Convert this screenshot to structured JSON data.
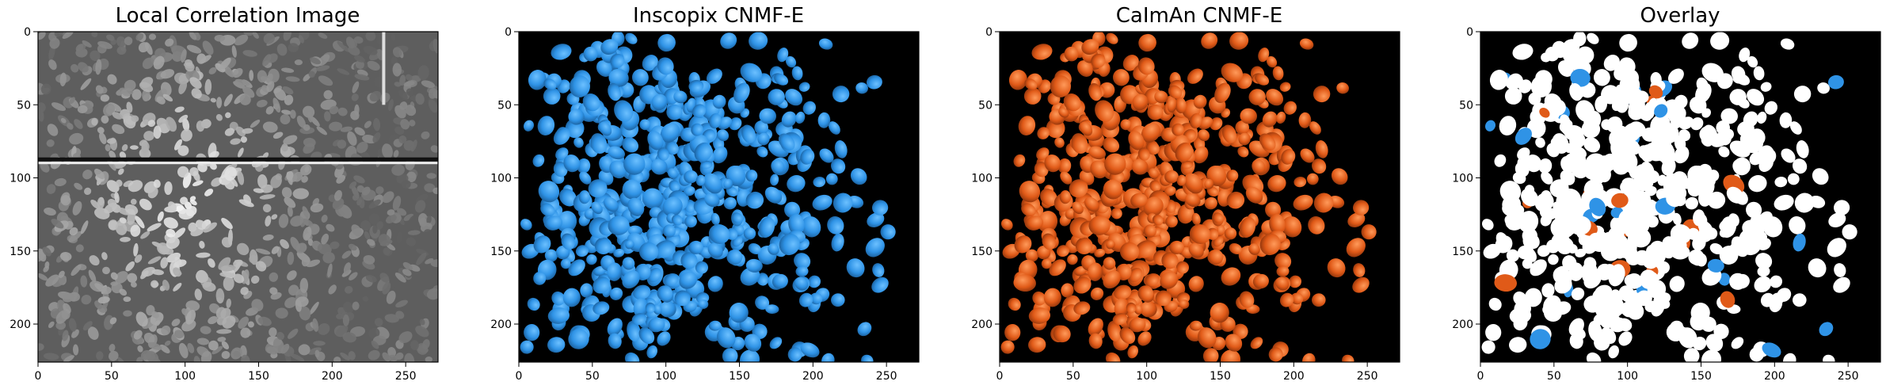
{
  "panels": [
    {
      "id": "corr",
      "title": "Local Correlation Image",
      "style": "gray"
    },
    {
      "id": "inscopix",
      "title": "Inscopix CNMF-E",
      "style": "blobs",
      "color": "#2f93e6"
    },
    {
      "id": "caiman",
      "title": "CaImAn CNMF-E",
      "style": "blobs",
      "color": "#e05a18"
    },
    {
      "id": "overlay",
      "title": "Overlay",
      "style": "overlay",
      "color": "#ffffff"
    }
  ],
  "axes": {
    "x_ticks": [
      "0",
      "50",
      "100",
      "150",
      "200",
      "250"
    ],
    "y_ticks": [
      "0",
      "50",
      "100",
      "150",
      "200"
    ],
    "xlim": [
      0,
      272
    ],
    "ylim": [
      0,
      226
    ]
  },
  "colors": {
    "background": "#000000",
    "inscopix": "#2f93e6",
    "caiman": "#e05a18",
    "match": "#ffffff"
  }
}
